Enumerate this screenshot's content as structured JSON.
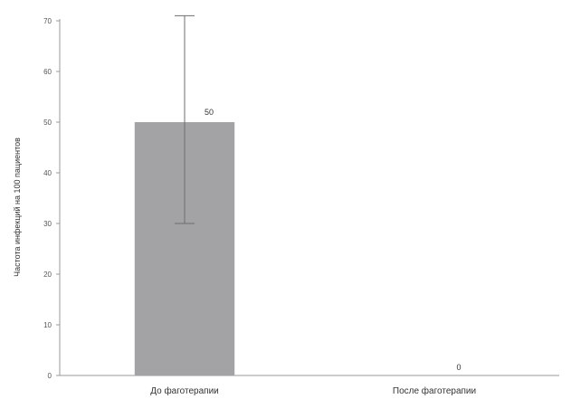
{
  "chart_data": {
    "type": "bar",
    "title": "",
    "xlabel": "",
    "ylabel": "Частота инфекций на 100 пациентов",
    "categories": [
      "До фаготерапии",
      "После фаготерапии"
    ],
    "values": [
      50,
      0
    ],
    "value_labels": [
      "50",
      "0"
    ],
    "error_bars": [
      {
        "lower": 30,
        "upper": 71
      },
      null
    ],
    "ylim": [
      0,
      70
    ],
    "yticks": [
      "0",
      "10",
      "20",
      "30",
      "40",
      "50",
      "60",
      "70"
    ],
    "grid": false,
    "legend": "none",
    "colors": {
      "bar": "#a3a3a5",
      "error_bar": "#6e6e6e",
      "axis": "#999999"
    }
  }
}
